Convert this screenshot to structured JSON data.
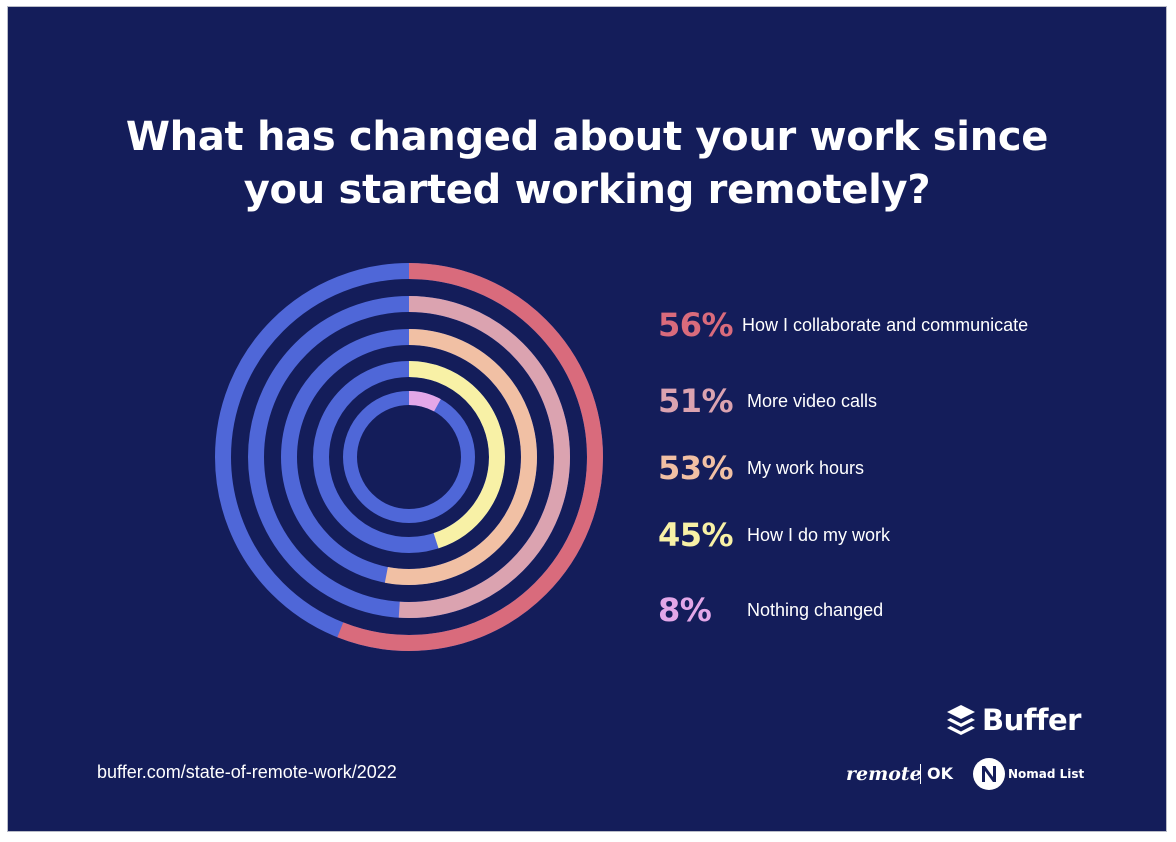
{
  "colors": {
    "background": "#141d5a",
    "track": "#4f67d8",
    "ring_colors": [
      "#d96b7c",
      "#dba3b0",
      "#f1c0a4",
      "#f8f1a6",
      "#e3a7e8"
    ],
    "white": "#ffffff"
  },
  "chart_data": {
    "type": "radial-bar",
    "title_lines": [
      "What has changed about your work since",
      "you started working remotely?"
    ],
    "unit": "%",
    "max": 100,
    "series": [
      {
        "name": "How I collaborate and communicate",
        "value": 56,
        "label": "56%",
        "color": "#d96b7c"
      },
      {
        "name": "More video calls",
        "value": 51,
        "label": "51%",
        "color": "#dba3b0"
      },
      {
        "name": "My work hours",
        "value": 53,
        "label": "53%",
        "color": "#f1c0a4"
      },
      {
        "name": "How I do my work",
        "value": 45,
        "label": "45%",
        "color": "#f8f1a6"
      },
      {
        "name": "Nothing changed",
        "value": 8,
        "label": "8%",
        "color": "#e3a7e8"
      }
    ]
  },
  "footer": {
    "source": "buffer.com/state-of-remote-work/2022",
    "logos": {
      "buffer": "Buffer",
      "buffer_icon": "buffer-stack-icon",
      "remote": "remote",
      "ok": "OK",
      "nomad": "Nomad List",
      "nomad_icon": "nomad-list-icon"
    }
  }
}
